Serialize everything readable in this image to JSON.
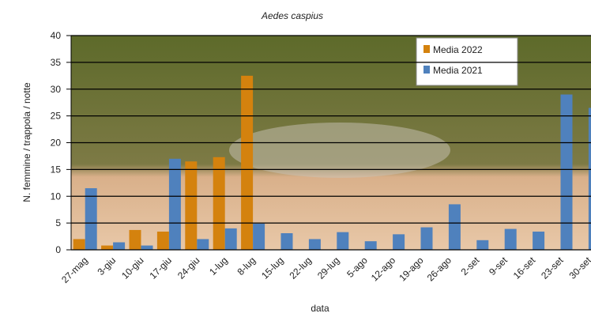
{
  "chart_data": {
    "type": "bar",
    "title": "Aedes caspius",
    "x_label": "data",
    "y_label": "N. femmine / trappola / notte",
    "categories": [
      "27-mag",
      "3-giu",
      "10-giu",
      "17-giu",
      "24-giu",
      "1-lug",
      "8-lug",
      "15-lug",
      "22-lug",
      "29-lug",
      "5-ago",
      "12-ago",
      "19-ago",
      "26-ago",
      "2-set",
      "9-set",
      "16-set",
      "23-set",
      "30-set"
    ],
    "series": [
      {
        "name": "Media 2022",
        "color": "#d4820e",
        "values": [
          2,
          0.8,
          3.7,
          3.4,
          16.5,
          17.3,
          32.5,
          null,
          null,
          null,
          null,
          null,
          null,
          null,
          null,
          null,
          null,
          null,
          null
        ]
      },
      {
        "name": "Media 2021",
        "color": "#4f81bd",
        "values": [
          11.5,
          1.4,
          0.8,
          17,
          2,
          4,
          4.9,
          3.1,
          2,
          3.3,
          1.6,
          2.9,
          4.2,
          8.5,
          1.8,
          3.9,
          3.4,
          29,
          26.5
        ]
      }
    ],
    "ylim": [
      0,
      40
    ],
    "yticks": [
      0,
      5,
      10,
      15,
      20,
      25,
      30,
      35,
      40
    ],
    "grid": true
  }
}
